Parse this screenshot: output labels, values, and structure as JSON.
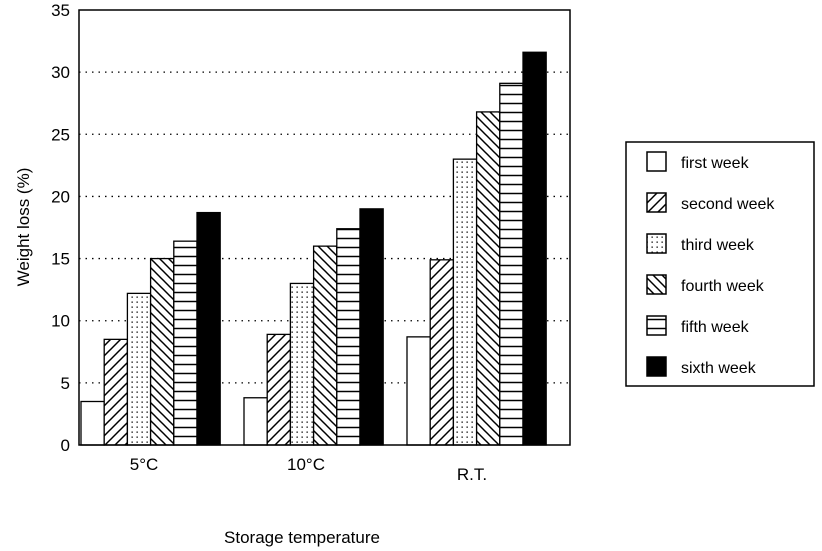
{
  "chart_data": {
    "type": "bar",
    "title": "",
    "xlabel": "Storage temperature",
    "ylabel": "Weight loss (%)",
    "ylim": [
      0,
      35
    ],
    "yticks": [
      0,
      5,
      10,
      15,
      20,
      25,
      30,
      35
    ],
    "grid": "horizontal dotted",
    "legend_position": "right",
    "categories": [
      "5°C",
      "10°C",
      "R.T."
    ],
    "series": [
      {
        "name": "first week",
        "pattern": "blank",
        "values": [
          3.5,
          3.8,
          8.7
        ]
      },
      {
        "name": "second week",
        "pattern": "diagonal-forward",
        "values": [
          8.5,
          8.9,
          14.9
        ]
      },
      {
        "name": "third week",
        "pattern": "dots",
        "values": [
          12.2,
          13.0,
          23.0
        ]
      },
      {
        "name": "fourth week",
        "pattern": "diagonal-back",
        "values": [
          15.0,
          16.0,
          26.8
        ]
      },
      {
        "name": "fifth week",
        "pattern": "horizontal",
        "values": [
          16.4,
          17.4,
          29.1
        ]
      },
      {
        "name": "sixth week",
        "pattern": "solid",
        "values": [
          18.7,
          19.0,
          31.6
        ]
      }
    ]
  }
}
